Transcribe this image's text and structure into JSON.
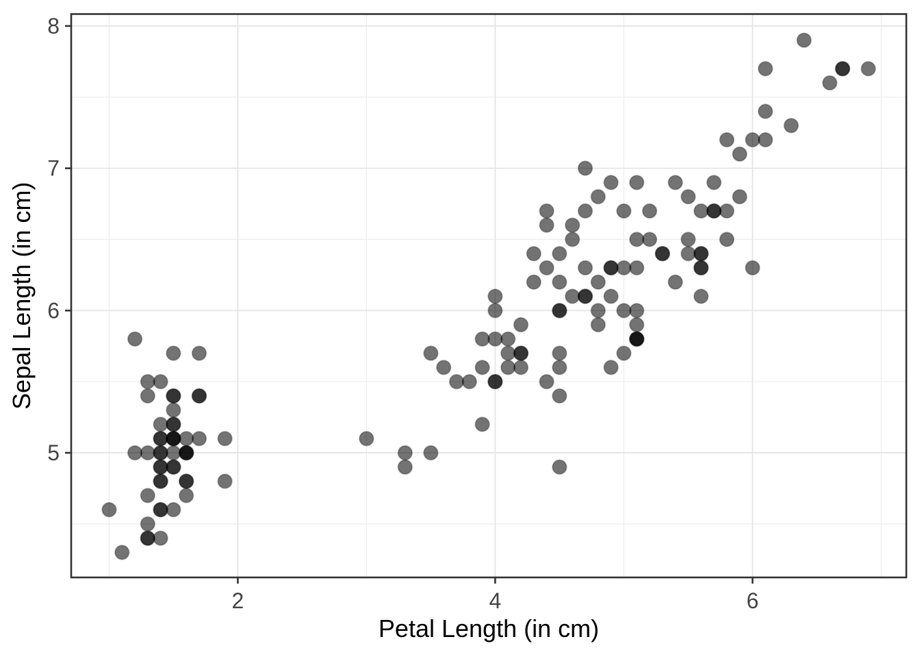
{
  "chart_data": {
    "type": "scatter",
    "title": "",
    "xlabel": "Petal Length (in cm)",
    "ylabel": "Sepal Length (in cm)",
    "xlim": [
      0.705,
      7.195
    ],
    "ylim": [
      4.124,
      8.084
    ],
    "x_tick_values": [
      2,
      4,
      6
    ],
    "x_tick_labels": [
      "2",
      "4",
      "6"
    ],
    "y_tick_values": [
      5,
      6,
      7,
      8
    ],
    "y_tick_labels": [
      "5",
      "6",
      "7",
      "8"
    ],
    "x_minor_gridlines": [
      1,
      3,
      5,
      7
    ],
    "y_minor_gridlines": [
      4.5,
      5.5,
      6.5,
      7.5
    ],
    "grid": "major+minor",
    "legend": "none",
    "style": {
      "background": "#ffffff",
      "panel_fill": "#ffffff",
      "panel_border": "#333333",
      "grid_major": "#e4e4e4",
      "grid_minor": "#ececec",
      "tick_color": "#333333",
      "tick_label_color": "#444444",
      "title_color": "#000000",
      "point_color": "#000000",
      "point_opacity": 0.55,
      "point_radius": 10.3
    },
    "points": [
      [
        1.4,
        5.1
      ],
      [
        1.4,
        4.9
      ],
      [
        1.3,
        4.7
      ],
      [
        1.5,
        4.6
      ],
      [
        1.4,
        5.0
      ],
      [
        1.7,
        5.4
      ],
      [
        1.4,
        4.6
      ],
      [
        1.5,
        5.0
      ],
      [
        1.4,
        4.4
      ],
      [
        1.5,
        4.9
      ],
      [
        1.5,
        5.4
      ],
      [
        1.6,
        4.8
      ],
      [
        1.4,
        4.8
      ],
      [
        1.1,
        4.3
      ],
      [
        1.2,
        5.8
      ],
      [
        1.5,
        5.7
      ],
      [
        1.3,
        5.4
      ],
      [
        1.4,
        5.1
      ],
      [
        1.7,
        5.7
      ],
      [
        1.5,
        5.1
      ],
      [
        1.7,
        5.4
      ],
      [
        1.5,
        5.1
      ],
      [
        1.0,
        4.6
      ],
      [
        1.7,
        5.1
      ],
      [
        1.9,
        4.8
      ],
      [
        1.6,
        5.0
      ],
      [
        1.6,
        5.0
      ],
      [
        1.5,
        5.2
      ],
      [
        1.4,
        5.2
      ],
      [
        1.6,
        4.7
      ],
      [
        1.6,
        4.8
      ],
      [
        1.5,
        5.4
      ],
      [
        1.5,
        5.2
      ],
      [
        1.4,
        5.5
      ],
      [
        1.5,
        4.9
      ],
      [
        1.2,
        5.0
      ],
      [
        1.3,
        5.5
      ],
      [
        1.4,
        4.9
      ],
      [
        1.3,
        4.4
      ],
      [
        1.5,
        5.1
      ],
      [
        1.3,
        5.0
      ],
      [
        1.3,
        4.5
      ],
      [
        1.3,
        4.4
      ],
      [
        1.6,
        5.0
      ],
      [
        1.9,
        5.1
      ],
      [
        1.4,
        4.8
      ],
      [
        1.6,
        5.1
      ],
      [
        1.4,
        4.6
      ],
      [
        1.5,
        5.3
      ],
      [
        1.4,
        5.0
      ],
      [
        4.7,
        7.0
      ],
      [
        4.5,
        6.4
      ],
      [
        4.9,
        6.9
      ],
      [
        4.0,
        5.5
      ],
      [
        4.6,
        6.5
      ],
      [
        4.5,
        5.7
      ],
      [
        4.7,
        6.3
      ],
      [
        3.3,
        4.9
      ],
      [
        4.6,
        6.6
      ],
      [
        3.9,
        5.2
      ],
      [
        3.5,
        5.0
      ],
      [
        4.2,
        5.9
      ],
      [
        4.0,
        6.0
      ],
      [
        4.7,
        6.1
      ],
      [
        3.6,
        5.6
      ],
      [
        4.4,
        6.7
      ],
      [
        4.5,
        5.6
      ],
      [
        4.1,
        5.8
      ],
      [
        4.5,
        6.2
      ],
      [
        3.9,
        5.6
      ],
      [
        4.8,
        5.9
      ],
      [
        4.0,
        6.1
      ],
      [
        4.9,
        6.3
      ],
      [
        4.7,
        6.1
      ],
      [
        4.3,
        6.4
      ],
      [
        4.4,
        6.6
      ],
      [
        4.8,
        6.8
      ],
      [
        5.0,
        6.7
      ],
      [
        4.5,
        6.0
      ],
      [
        3.5,
        5.7
      ],
      [
        3.8,
        5.5
      ],
      [
        3.7,
        5.5
      ],
      [
        3.9,
        5.8
      ],
      [
        5.1,
        6.0
      ],
      [
        4.5,
        5.4
      ],
      [
        4.5,
        6.0
      ],
      [
        4.7,
        6.7
      ],
      [
        4.4,
        6.3
      ],
      [
        4.1,
        5.6
      ],
      [
        4.0,
        5.5
      ],
      [
        4.4,
        5.5
      ],
      [
        4.6,
        6.1
      ],
      [
        4.0,
        5.8
      ],
      [
        3.3,
        5.0
      ],
      [
        4.2,
        5.6
      ],
      [
        4.2,
        5.7
      ],
      [
        4.2,
        5.7
      ],
      [
        4.3,
        6.2
      ],
      [
        3.0,
        5.1
      ],
      [
        4.1,
        5.7
      ],
      [
        6.0,
        6.3
      ],
      [
        5.1,
        5.8
      ],
      [
        5.9,
        7.1
      ],
      [
        5.6,
        6.3
      ],
      [
        5.8,
        6.5
      ],
      [
        6.6,
        7.6
      ],
      [
        4.5,
        4.9
      ],
      [
        6.3,
        7.3
      ],
      [
        5.8,
        6.7
      ],
      [
        6.1,
        7.2
      ],
      [
        5.1,
        6.5
      ],
      [
        5.3,
        6.4
      ],
      [
        5.5,
        6.8
      ],
      [
        5.0,
        5.7
      ],
      [
        5.1,
        5.8
      ],
      [
        5.3,
        6.4
      ],
      [
        5.5,
        6.5
      ],
      [
        6.7,
        7.7
      ],
      [
        6.9,
        7.7
      ],
      [
        5.0,
        6.0
      ],
      [
        5.7,
        6.9
      ],
      [
        4.9,
        5.6
      ],
      [
        6.7,
        7.7
      ],
      [
        4.9,
        6.3
      ],
      [
        5.7,
        6.7
      ],
      [
        6.0,
        7.2
      ],
      [
        4.8,
        6.2
      ],
      [
        4.9,
        6.1
      ],
      [
        5.6,
        6.4
      ],
      [
        5.8,
        7.2
      ],
      [
        6.1,
        7.4
      ],
      [
        6.4,
        7.9
      ],
      [
        5.6,
        6.4
      ],
      [
        5.1,
        6.3
      ],
      [
        5.6,
        6.1
      ],
      [
        6.1,
        7.7
      ],
      [
        5.6,
        6.3
      ],
      [
        5.5,
        6.4
      ],
      [
        4.8,
        6.0
      ],
      [
        5.4,
        6.9
      ],
      [
        5.6,
        6.7
      ],
      [
        5.1,
        6.9
      ],
      [
        5.1,
        5.8
      ],
      [
        5.9,
        6.8
      ],
      [
        5.7,
        6.7
      ],
      [
        5.2,
        6.7
      ],
      [
        5.0,
        6.3
      ],
      [
        5.2,
        6.5
      ],
      [
        5.4,
        6.2
      ],
      [
        5.1,
        5.9
      ]
    ]
  }
}
